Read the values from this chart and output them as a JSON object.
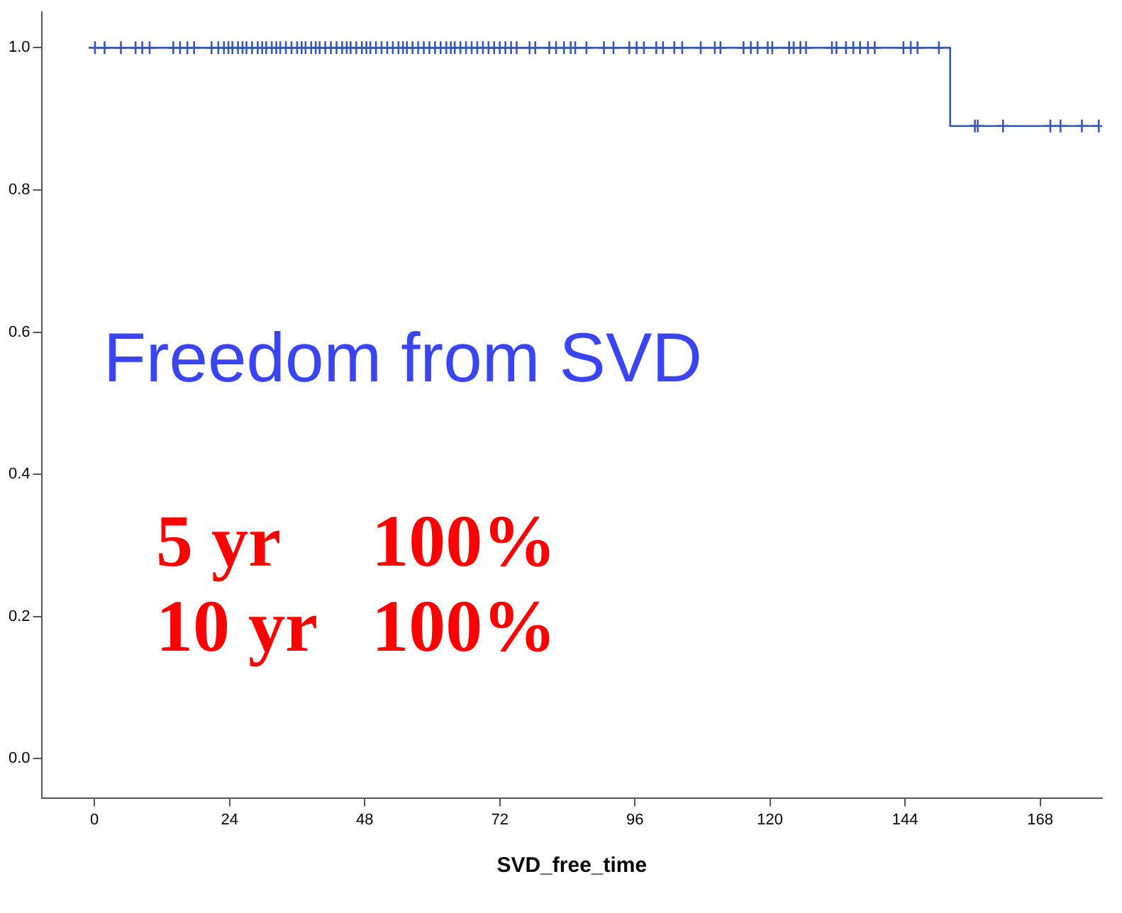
{
  "chart_data": {
    "type": "step",
    "xlabel": "SVD_free_time",
    "xlim": [
      -9.4,
      179
    ],
    "xticks": [
      0,
      24,
      48,
      72,
      96,
      120,
      144,
      168
    ],
    "ylim": [
      -0.055,
      1.05
    ],
    "yticks": [
      {
        "value": 0,
        "label": "0.0"
      },
      {
        "value": 0.2,
        "label": "0.2"
      },
      {
        "value": 0.4,
        "label": "0.4"
      },
      {
        "value": 0.6,
        "label": "0.6"
      },
      {
        "value": 0.8,
        "label": "0.8"
      },
      {
        "value": 1,
        "label": "1.0"
      }
    ],
    "grid": false,
    "legend": false,
    "annotations": [
      "Freedom from SVD",
      "5 yr     100%",
      "10 yr   100%"
    ],
    "series": [
      {
        "color": "#3b58b0",
        "marker": "none",
        "x": [
          0,
          152,
          178.4
        ],
        "values": [
          1,
          0.89,
          0.89
        ]
      },
      {
        "type": "scatter",
        "color": "#3b58b0",
        "marker": "cross",
        "x": [
          0.1,
          1.8,
          4.7,
          7.3,
          8.5,
          9.8,
          14,
          15.2,
          16.5,
          17.7,
          20.8,
          22,
          23,
          23.8,
          24.5,
          25.5,
          26.3,
          27,
          28,
          29,
          29.8,
          30.5,
          31.5,
          32.3,
          33,
          34,
          35,
          36,
          36.8,
          37.5,
          38.5,
          39.3,
          40,
          41,
          42,
          43,
          44,
          44.8,
          45.5,
          46.5,
          47.5,
          48.3,
          49,
          50,
          51,
          52,
          53,
          54,
          54.8,
          55.5,
          56.5,
          57.5,
          58.5,
          59.5,
          60.5,
          61.5,
          62.5,
          63.3,
          64,
          65,
          66,
          67,
          68,
          69,
          70,
          71,
          72,
          73,
          74,
          75,
          77.3,
          78.3,
          80.8,
          82,
          83.4,
          84.6,
          85.4,
          87.4,
          90.5,
          92.2,
          95,
          96.3,
          97.6,
          99.8,
          101,
          103,
          104.4,
          107.7,
          110.2,
          111.2,
          115.3,
          116.6,
          117.8,
          119.6,
          120.4,
          123.4,
          124.2,
          125.4,
          126.4,
          131,
          131.8,
          133.5,
          134.8,
          136,
          137.4,
          138.6,
          143.7,
          145,
          146.2,
          150,
          156.4,
          156.9,
          161.4,
          169.8,
          171.6,
          175.4,
          178.4
        ],
        "values": [
          1,
          1,
          1,
          1,
          1,
          1,
          1,
          1,
          1,
          1,
          1,
          1,
          1,
          1,
          1,
          1,
          1,
          1,
          1,
          1,
          1,
          1,
          1,
          1,
          1,
          1,
          1,
          1,
          1,
          1,
          1,
          1,
          1,
          1,
          1,
          1,
          1,
          1,
          1,
          1,
          1,
          1,
          1,
          1,
          1,
          1,
          1,
          1,
          1,
          1,
          1,
          1,
          1,
          1,
          1,
          1,
          1,
          1,
          1,
          1,
          1,
          1,
          1,
          1,
          1,
          1,
          1,
          1,
          1,
          1,
          1,
          1,
          1,
          1,
          1,
          1,
          1,
          1,
          1,
          1,
          1,
          1,
          1,
          1,
          1,
          1,
          1,
          1,
          1,
          1,
          1,
          1,
          1,
          1,
          1,
          1,
          1,
          1,
          1,
          1,
          1,
          1,
          1,
          1,
          1,
          1,
          1,
          1,
          1,
          1,
          0.89,
          0.89,
          0.89,
          0.89,
          0.89,
          0.89,
          0.89
        ]
      }
    ]
  }
}
